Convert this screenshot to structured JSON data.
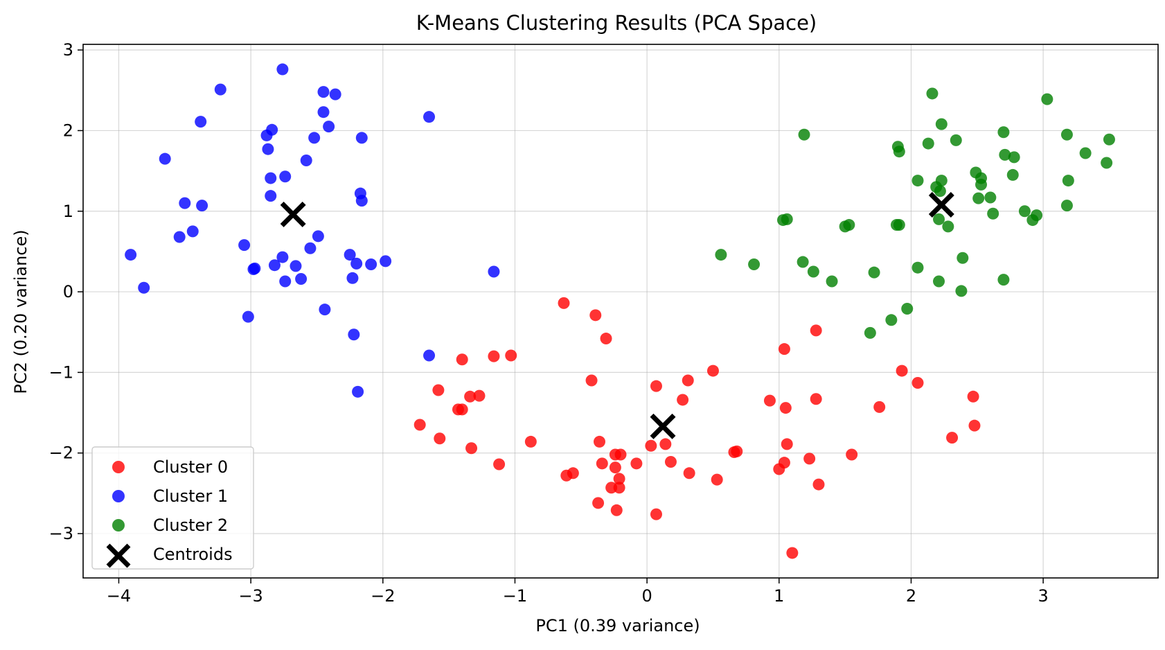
{
  "chart_data": {
    "type": "scatter",
    "title": "K-Means Clustering Results (PCA Space)",
    "xlabel": "PC1 (0.39 variance)",
    "ylabel": "PC2 (0.20 variance)",
    "xlim": [
      -4.27,
      3.87
    ],
    "ylim": [
      -3.55,
      3.07
    ],
    "xticks": [
      -4,
      -3,
      -2,
      -1,
      0,
      1,
      2,
      3
    ],
    "yticks": [
      -3,
      -2,
      -1,
      0,
      1,
      2,
      3
    ],
    "grid": true,
    "legend_position": "lower-left",
    "series": [
      {
        "name": "Cluster 0",
        "color": "#ff0000",
        "marker": "circle",
        "points": [
          [
            -0.63,
            -0.14
          ],
          [
            -0.39,
            -0.29
          ],
          [
            -0.31,
            -0.58
          ],
          [
            -1.16,
            -0.8
          ],
          [
            -1.03,
            -0.79
          ],
          [
            -1.4,
            -0.84
          ],
          [
            -1.58,
            -1.22
          ],
          [
            -1.34,
            -1.3
          ],
          [
            -1.27,
            -1.29
          ],
          [
            -1.43,
            -1.46
          ],
          [
            -1.4,
            -1.46
          ],
          [
            -1.72,
            -1.65
          ],
          [
            -1.57,
            -1.82
          ],
          [
            -1.33,
            -1.94
          ],
          [
            -0.88,
            -1.86
          ],
          [
            -1.12,
            -2.14
          ],
          [
            -0.42,
            -1.1
          ],
          [
            -0.36,
            -1.86
          ],
          [
            -0.34,
            -2.13
          ],
          [
            -0.24,
            -2.02
          ],
          [
            -0.2,
            -2.02
          ],
          [
            -0.24,
            -2.18
          ],
          [
            -0.21,
            -2.32
          ],
          [
            -0.27,
            -2.43
          ],
          [
            -0.21,
            -2.43
          ],
          [
            -0.37,
            -2.62
          ],
          [
            -0.23,
            -2.71
          ],
          [
            -0.08,
            -2.13
          ],
          [
            -0.61,
            -2.28
          ],
          [
            -0.56,
            -2.25
          ],
          [
            0.07,
            -1.17
          ],
          [
            0.31,
            -1.1
          ],
          [
            0.27,
            -1.34
          ],
          [
            0.5,
            -0.98
          ],
          [
            0.03,
            -1.91
          ],
          [
            0.14,
            -1.89
          ],
          [
            0.18,
            -2.11
          ],
          [
            0.32,
            -2.25
          ],
          [
            0.53,
            -2.33
          ],
          [
            0.68,
            -1.98
          ],
          [
            0.66,
            -1.99
          ],
          [
            0.07,
            -2.76
          ],
          [
            1.04,
            -0.71
          ],
          [
            1.28,
            -0.48
          ],
          [
            0.93,
            -1.35
          ],
          [
            1.05,
            -1.44
          ],
          [
            1.28,
            -1.33
          ],
          [
            1.06,
            -1.89
          ],
          [
            1.04,
            -2.12
          ],
          [
            1.0,
            -2.2
          ],
          [
            1.23,
            -2.07
          ],
          [
            1.3,
            -2.39
          ],
          [
            1.1,
            -3.24
          ],
          [
            1.55,
            -2.02
          ],
          [
            1.76,
            -1.43
          ],
          [
            1.93,
            -0.98
          ],
          [
            2.05,
            -1.13
          ],
          [
            2.47,
            -1.3
          ],
          [
            2.48,
            -1.66
          ],
          [
            2.31,
            -1.81
          ]
        ]
      },
      {
        "name": "Cluster 1",
        "color": "#0000ff",
        "marker": "circle",
        "points": [
          [
            -2.76,
            2.76
          ],
          [
            -3.23,
            2.51
          ],
          [
            -2.45,
            2.48
          ],
          [
            -2.36,
            2.45
          ],
          [
            -2.45,
            2.23
          ],
          [
            -3.38,
            2.11
          ],
          [
            -2.41,
            2.05
          ],
          [
            -2.84,
            2.01
          ],
          [
            -2.88,
            1.94
          ],
          [
            -2.52,
            1.91
          ],
          [
            -2.16,
            1.91
          ],
          [
            -1.65,
            2.17
          ],
          [
            -3.65,
            1.65
          ],
          [
            -2.87,
            1.77
          ],
          [
            -2.58,
            1.63
          ],
          [
            -2.85,
            1.41
          ],
          [
            -2.74,
            1.43
          ],
          [
            -2.17,
            1.22
          ],
          [
            -2.16,
            1.13
          ],
          [
            -2.85,
            1.19
          ],
          [
            -3.5,
            1.1
          ],
          [
            -3.37,
            1.07
          ],
          [
            -3.54,
            0.68
          ],
          [
            -3.44,
            0.75
          ],
          [
            -2.49,
            0.69
          ],
          [
            -3.05,
            0.58
          ],
          [
            -2.55,
            0.54
          ],
          [
            -2.76,
            0.43
          ],
          [
            -2.25,
            0.46
          ],
          [
            -2.2,
            0.35
          ],
          [
            -2.09,
            0.34
          ],
          [
            -1.98,
            0.38
          ],
          [
            -3.91,
            0.46
          ],
          [
            -2.97,
            0.29
          ],
          [
            -2.98,
            0.28
          ],
          [
            -2.82,
            0.33
          ],
          [
            -2.66,
            0.32
          ],
          [
            -2.74,
            0.13
          ],
          [
            -2.62,
            0.16
          ],
          [
            -2.23,
            0.17
          ],
          [
            -3.81,
            0.05
          ],
          [
            -1.16,
            0.25
          ],
          [
            -2.44,
            -0.22
          ],
          [
            -3.02,
            -0.31
          ],
          [
            -2.22,
            -0.53
          ],
          [
            -1.65,
            -0.79
          ],
          [
            -2.19,
            -1.24
          ]
        ]
      },
      {
        "name": "Cluster 2",
        "color": "#007f00",
        "marker": "circle",
        "points": [
          [
            2.16,
            2.46
          ],
          [
            3.03,
            2.39
          ],
          [
            2.23,
            2.08
          ],
          [
            1.19,
            1.95
          ],
          [
            2.7,
            1.98
          ],
          [
            3.18,
            1.95
          ],
          [
            3.5,
            1.89
          ],
          [
            2.34,
            1.88
          ],
          [
            2.13,
            1.84
          ],
          [
            1.9,
            1.8
          ],
          [
            1.91,
            1.74
          ],
          [
            3.32,
            1.72
          ],
          [
            2.71,
            1.7
          ],
          [
            2.78,
            1.67
          ],
          [
            3.48,
            1.6
          ],
          [
            2.49,
            1.48
          ],
          [
            2.53,
            1.41
          ],
          [
            2.77,
            1.45
          ],
          [
            2.05,
            1.38
          ],
          [
            2.23,
            1.38
          ],
          [
            3.19,
            1.38
          ],
          [
            2.53,
            1.33
          ],
          [
            2.19,
            1.3
          ],
          [
            2.22,
            1.25
          ],
          [
            2.51,
            1.16
          ],
          [
            2.6,
            1.17
          ],
          [
            3.18,
            1.07
          ],
          [
            2.86,
            1.0
          ],
          [
            2.95,
            0.95
          ],
          [
            2.62,
            0.97
          ],
          [
            2.92,
            0.89
          ],
          [
            2.21,
            0.9
          ],
          [
            1.03,
            0.89
          ],
          [
            1.06,
            0.9
          ],
          [
            2.28,
            0.81
          ],
          [
            1.89,
            0.83
          ],
          [
            1.91,
            0.83
          ],
          [
            1.5,
            0.81
          ],
          [
            1.53,
            0.83
          ],
          [
            0.56,
            0.46
          ],
          [
            0.81,
            0.34
          ],
          [
            1.18,
            0.37
          ],
          [
            1.26,
            0.25
          ],
          [
            1.4,
            0.13
          ],
          [
            1.72,
            0.24
          ],
          [
            2.05,
            0.3
          ],
          [
            2.39,
            0.42
          ],
          [
            2.21,
            0.13
          ],
          [
            2.7,
            0.15
          ],
          [
            2.38,
            0.01
          ],
          [
            1.97,
            -0.21
          ],
          [
            1.85,
            -0.35
          ],
          [
            1.69,
            -0.51
          ]
        ]
      },
      {
        "name": "Centroids",
        "color": "#000000",
        "marker": "x",
        "points": [
          [
            -2.68,
            0.96
          ],
          [
            0.12,
            -1.67
          ],
          [
            2.23,
            1.08
          ]
        ]
      }
    ]
  }
}
